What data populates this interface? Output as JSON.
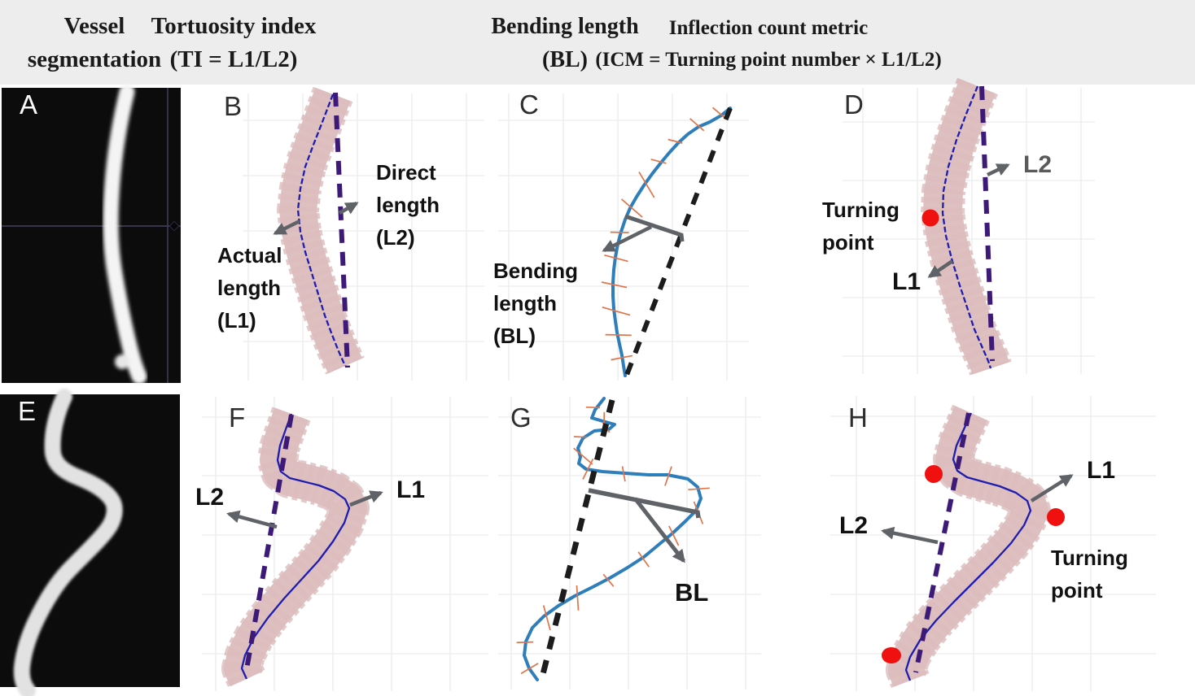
{
  "header": {
    "columns": [
      {
        "line1": "Vessel",
        "line2": "segmentation"
      },
      {
        "line1": "Tortuosity index",
        "line2": "(TI = L1/L2)"
      },
      {
        "line1": "Bending length",
        "line2": "(BL)"
      },
      {
        "line1": "Inflection count metric",
        "line2": "(ICM = Turning point number × L1/L2)"
      }
    ]
  },
  "panels": {
    "a": {
      "label": "A"
    },
    "b": {
      "label": "B",
      "direct": [
        "Direct",
        "length",
        "(L2)"
      ],
      "actual": [
        "Actual",
        "length",
        "(L1)"
      ]
    },
    "c": {
      "label": "C",
      "bending": [
        "Bending",
        "length",
        "(BL)"
      ]
    },
    "d": {
      "label": "D",
      "l2": "L2",
      "l1": "L1",
      "turning": [
        "Turning",
        "point"
      ]
    },
    "e": {
      "label": "E"
    },
    "f": {
      "label": "F",
      "l2": "L2",
      "l1": "L1"
    },
    "g": {
      "label": "G",
      "bl": "BL"
    },
    "h": {
      "label": "H",
      "l1": "L1",
      "l2": "L2",
      "turning": [
        "Turning",
        "point"
      ]
    }
  },
  "colors": {
    "header_background": "#ededed",
    "segmentation_background": "#0c0c0c",
    "vessel_fill_pink": "#dcbcbd",
    "vessel_edge_red": "#bd8181",
    "centerline_blue": "#1d1db0",
    "direct_length_purple": "#3e1a78",
    "curve_blue": "#2e7ebc",
    "normal_tick_orange": "#e0744a",
    "turning_point_red": "#f11010",
    "annotation_arrow_gray": "#5f6368",
    "dashed_black": "#1c1c1c"
  }
}
